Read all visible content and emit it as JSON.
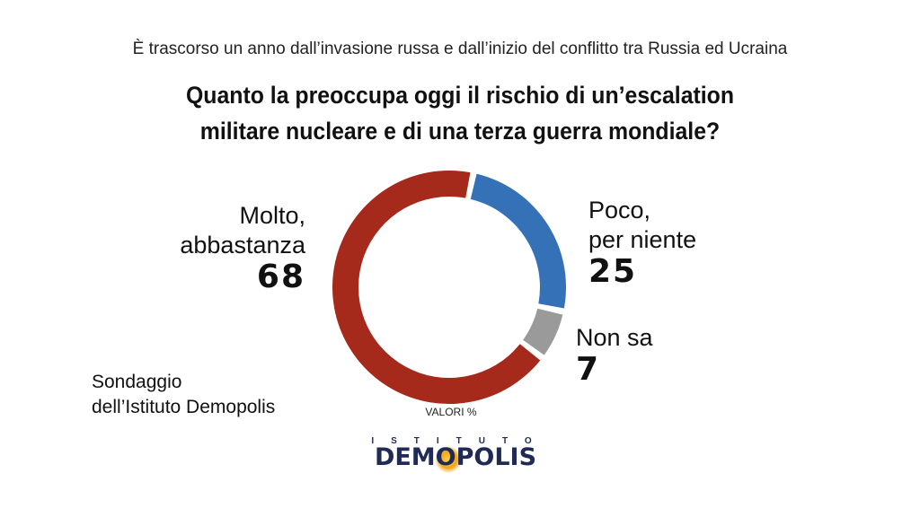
{
  "subtitle": "È trascorso un anno dall’invasione russa e dall’inizio del conflitto tra Russia ed Ucraina",
  "title_line1": "Quanto la preoccupa oggi il rischio di un’escalation",
  "title_line2": "militare nucleare e di una terza guerra mondiale?",
  "note": "VALORI %",
  "source_line1": "Sondaggio",
  "source_line2": "dell’Istituto Demopolis",
  "logo_top": "ISTITUTO",
  "logo_main": "DEMOPOLIS",
  "colors": {
    "red": "#a52a1b",
    "blue": "#3471b6",
    "grey": "#9a9a9a",
    "logo": "#1f2a55"
  },
  "chart_data": {
    "type": "pie",
    "style": "donut",
    "slices": [
      {
        "name_line1": "Poco,",
        "name_line2": "per niente",
        "value": 25,
        "color": "#3471b6"
      },
      {
        "name_line1": "Non sa",
        "name_line2": "",
        "value": 7,
        "color": "#9a9a9a"
      },
      {
        "name_line1": "Molto,",
        "name_line2": "abbastanza",
        "value": 68,
        "color": "#a52a1b"
      }
    ]
  }
}
